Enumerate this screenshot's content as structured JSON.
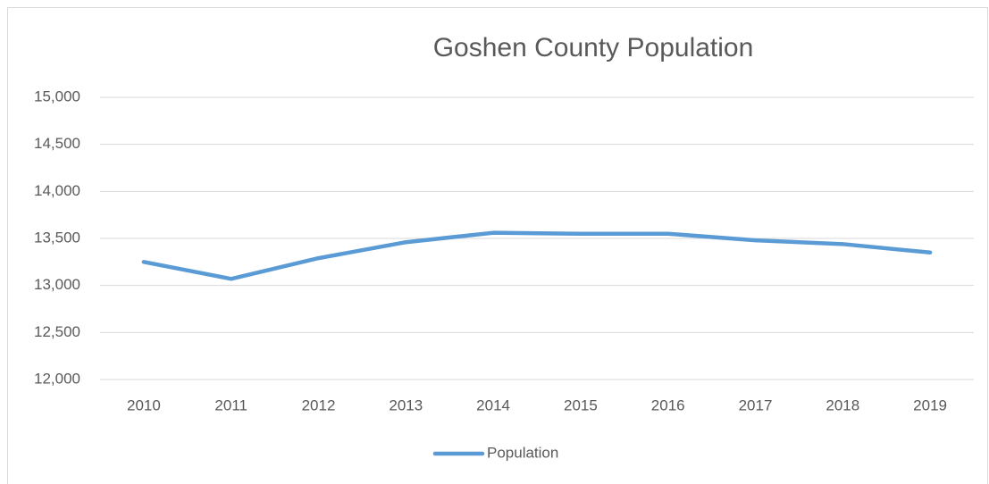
{
  "chart_data": {
    "type": "line",
    "title": "Goshen County Population",
    "categories": [
      "2010",
      "2011",
      "2012",
      "2013",
      "2014",
      "2015",
      "2016",
      "2017",
      "2018",
      "2019"
    ],
    "series": [
      {
        "name": "Population",
        "color": "#5b9bd5",
        "values": [
          13250,
          13070,
          13290,
          13460,
          13560,
          13550,
          13550,
          13480,
          13440,
          13350
        ]
      }
    ],
    "ylim": [
      12000,
      15000
    ],
    "yticks": [
      {
        "value": 12000,
        "label": "12,000"
      },
      {
        "value": 12500,
        "label": "12,500"
      },
      {
        "value": 13000,
        "label": "13,000"
      },
      {
        "value": 13500,
        "label": "13,500"
      },
      {
        "value": 14000,
        "label": "14,000"
      },
      {
        "value": 14500,
        "label": "14,500"
      },
      {
        "value": 15000,
        "label": "15,000"
      }
    ],
    "grid": true,
    "legend": "bottom"
  }
}
